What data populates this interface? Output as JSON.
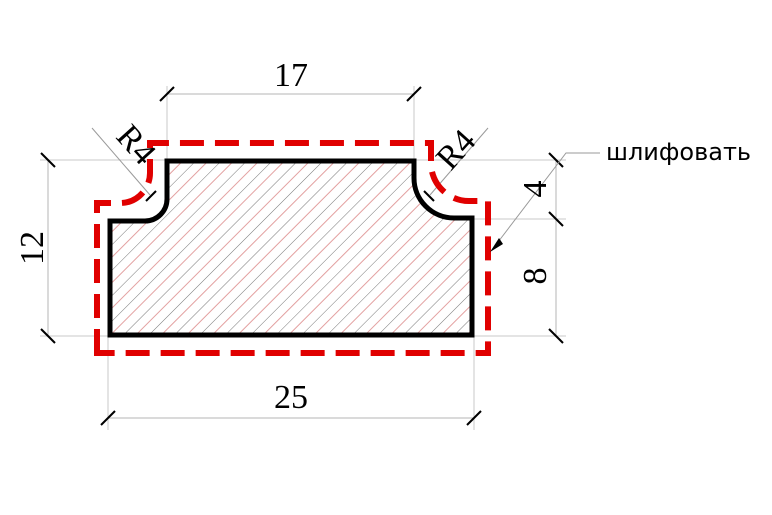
{
  "dimensions": {
    "top_width": "17",
    "bottom_width": "25",
    "total_height": "12",
    "lower_height": "8",
    "upper_height": "4",
    "radius_left": "R4",
    "radius_right": "R4"
  },
  "annotation": {
    "finish_note": "шлифовать"
  },
  "colors": {
    "part_outline": "#000000",
    "allowance_outline": "#e00000",
    "hatch_black": "#000000",
    "hatch_red": "#d04040"
  }
}
